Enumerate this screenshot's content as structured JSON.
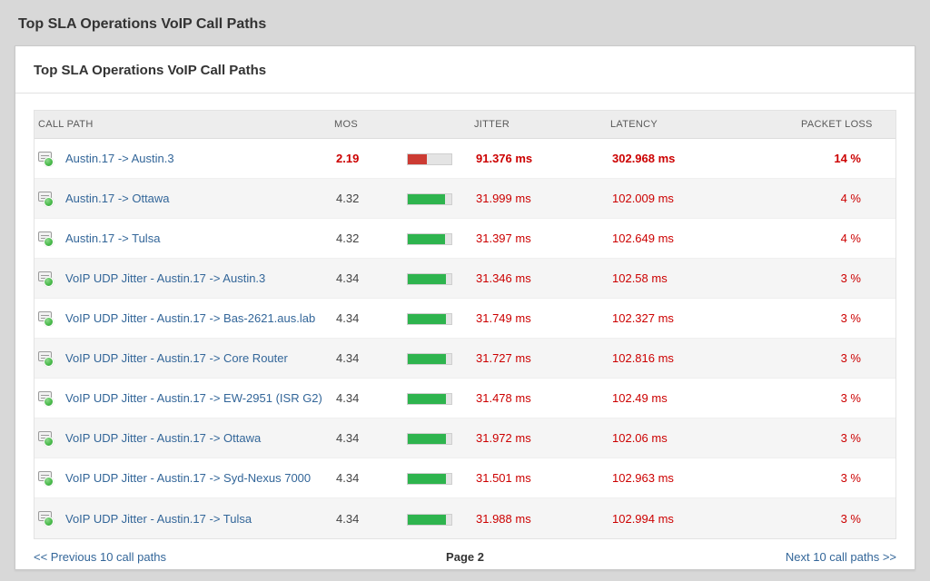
{
  "page_title": "Top SLA Operations VoIP Call Paths",
  "card": {
    "title": "Top SLA Operations VoIP Call Paths",
    "table": {
      "columns": [
        "CALL PATH",
        "MOS",
        "JITTER",
        "LATENCY",
        "PACKET LOSS"
      ],
      "rows": [
        {
          "path": "Austin.17 -> Austin.3",
          "mos": "2.19",
          "mos_pct": 44,
          "status": "critical",
          "jitter": "91.376 ms",
          "latency": "302.968 ms",
          "loss": "14 %"
        },
        {
          "path": "Austin.17 -> Ottawa",
          "mos": "4.32",
          "mos_pct": 86,
          "status": "good",
          "jitter": "31.999 ms",
          "latency": "102.009 ms",
          "loss": "4 %"
        },
        {
          "path": "Austin.17 -> Tulsa",
          "mos": "4.32",
          "mos_pct": 86,
          "status": "good",
          "jitter": "31.397 ms",
          "latency": "102.649 ms",
          "loss": "4 %"
        },
        {
          "path": "VoIP UDP Jitter - Austin.17 -> Austin.3",
          "mos": "4.34",
          "mos_pct": 87,
          "status": "good",
          "jitter": "31.346 ms",
          "latency": "102.58 ms",
          "loss": "3 %"
        },
        {
          "path": "VoIP UDP Jitter - Austin.17 -> Bas-2621.aus.lab",
          "mos": "4.34",
          "mos_pct": 87,
          "status": "good",
          "jitter": "31.749 ms",
          "latency": "102.327 ms",
          "loss": "3 %"
        },
        {
          "path": "VoIP UDP Jitter - Austin.17 -> Core Router",
          "mos": "4.34",
          "mos_pct": 87,
          "status": "good",
          "jitter": "31.727 ms",
          "latency": "102.816 ms",
          "loss": "3 %"
        },
        {
          "path": "VoIP UDP Jitter - Austin.17 -> EW-2951 (ISR G2)",
          "mos": "4.34",
          "mos_pct": 87,
          "status": "good",
          "jitter": "31.478 ms",
          "latency": "102.49 ms",
          "loss": "3 %"
        },
        {
          "path": "VoIP UDP Jitter - Austin.17 -> Ottawa",
          "mos": "4.34",
          "mos_pct": 87,
          "status": "good",
          "jitter": "31.972 ms",
          "latency": "102.06 ms",
          "loss": "3 %"
        },
        {
          "path": "VoIP UDP Jitter - Austin.17 -> Syd-Nexus 7000",
          "mos": "4.34",
          "mos_pct": 87,
          "status": "good",
          "jitter": "31.501 ms",
          "latency": "102.963 ms",
          "loss": "3 %"
        },
        {
          "path": "VoIP UDP Jitter - Austin.17 -> Tulsa",
          "mos": "4.34",
          "mos_pct": 87,
          "status": "good",
          "jitter": "31.988 ms",
          "latency": "102.994 ms",
          "loss": "3 %"
        }
      ]
    },
    "pagination": {
      "prev": "<< Previous 10 call paths",
      "page": "Page 2",
      "next": "Next 10 call paths >>"
    }
  },
  "colors": {
    "link": "#336699",
    "alert_red": "#cc0000",
    "bar_green": "#2eb44e",
    "bar_red": "#cc3b33"
  }
}
